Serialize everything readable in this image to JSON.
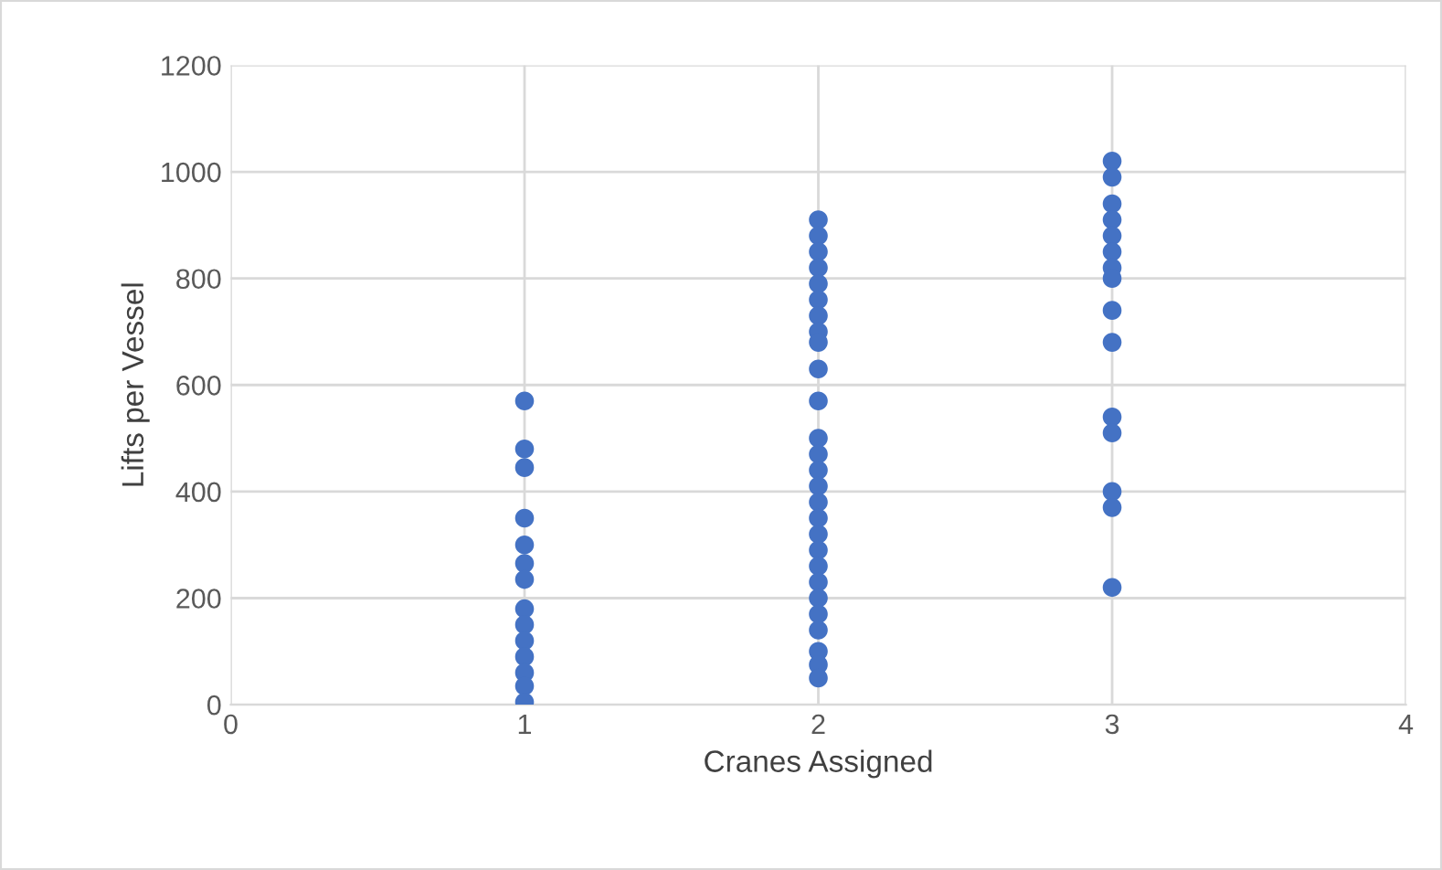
{
  "chart_data": {
    "type": "scatter",
    "xlabel": "Cranes Assigned",
    "ylabel": "Lifts per Vessel",
    "x": [
      1,
      1,
      1,
      1,
      1,
      1,
      1,
      1,
      1,
      1,
      1,
      1,
      1,
      1,
      2,
      2,
      2,
      2,
      2,
      2,
      2,
      2,
      2,
      2,
      2,
      2,
      2,
      2,
      2,
      2,
      2,
      2,
      2,
      2,
      2,
      2,
      2,
      2,
      2,
      2,
      2,
      3,
      3,
      3,
      3,
      3,
      3,
      3,
      3,
      3,
      3,
      3,
      3,
      3,
      3,
      3
    ],
    "values": [
      570,
      480,
      445,
      350,
      300,
      265,
      235,
      180,
      150,
      120,
      90,
      60,
      35,
      5,
      910,
      880,
      850,
      820,
      790,
      760,
      730,
      700,
      680,
      630,
      570,
      500,
      470,
      440,
      410,
      380,
      350,
      320,
      290,
      260,
      230,
      200,
      170,
      140,
      100,
      75,
      50,
      1020,
      990,
      940,
      910,
      880,
      850,
      820,
      800,
      740,
      680,
      540,
      510,
      400,
      370,
      220
    ],
    "color": "#4472c4",
    "marker": "circle",
    "xlim": [
      0,
      4
    ],
    "xticks": [
      0,
      1,
      2,
      3,
      4
    ],
    "ylim": [
      0,
      1200
    ],
    "yticks": [
      0,
      200,
      400,
      600,
      800,
      1000,
      1200
    ],
    "grid": true
  }
}
